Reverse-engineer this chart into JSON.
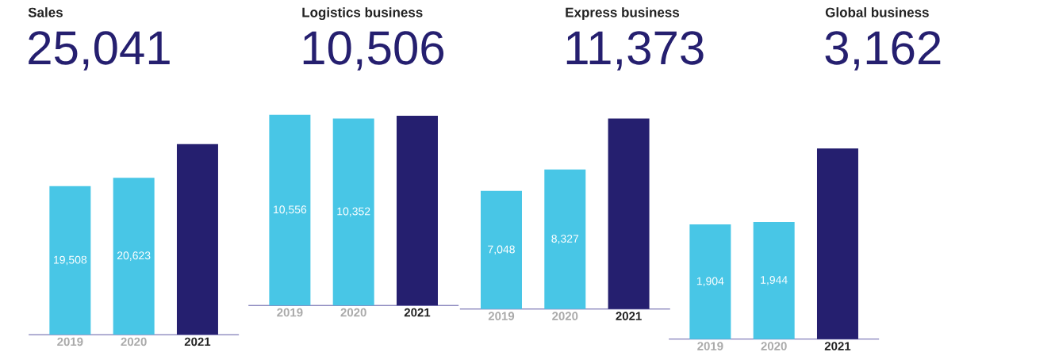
{
  "chart_data": [
    {
      "type": "bar",
      "title": "Sales",
      "subtitle": "25,041",
      "categories": [
        "2019",
        "2020",
        "2021"
      ],
      "values": [
        19508,
        20623,
        25041
      ],
      "colors": [
        "#48c6e6",
        "#48c6e6",
        "#251f6f"
      ],
      "value_labels": [
        "19,508",
        "20,623",
        null
      ]
    },
    {
      "type": "bar",
      "title": "Logistics business",
      "subtitle": "10,506",
      "categories": [
        "2019",
        "2020",
        "2021"
      ],
      "values": [
        10556,
        10352,
        10506
      ],
      "colors": [
        "#48c6e6",
        "#48c6e6",
        "#251f6f"
      ],
      "value_labels": [
        "10,556",
        "10,352",
        null
      ]
    },
    {
      "type": "bar",
      "title": "Express business",
      "subtitle": "11,373",
      "categories": [
        "2019",
        "2020",
        "2021"
      ],
      "values": [
        7048,
        8327,
        11373
      ],
      "colors": [
        "#48c6e6",
        "#48c6e6",
        "#251f6f"
      ],
      "value_labels": [
        "7,048",
        "8,327",
        null
      ]
    },
    {
      "type": "bar",
      "title": "Global business",
      "subtitle": "3,162",
      "categories": [
        "2019",
        "2020",
        "2021"
      ],
      "values": [
        1904,
        1944,
        3162
      ],
      "colors": [
        "#48c6e6",
        "#48c6e6",
        "#251f6f"
      ],
      "value_labels": [
        "1,904",
        "1,944",
        null
      ]
    }
  ]
}
